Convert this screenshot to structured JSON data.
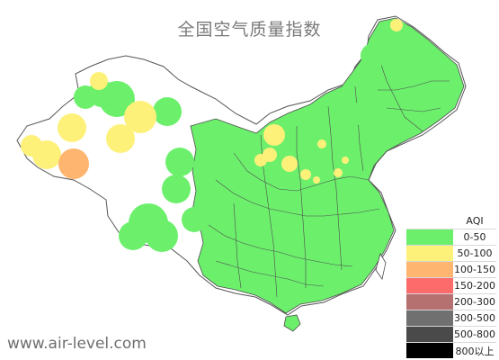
{
  "title": "全国空气质量指数",
  "watermark": "www.air-level.com",
  "legend": {
    "title": "AQI",
    "items": [
      {
        "label": "0-50",
        "color": "#6cf06c"
      },
      {
        "label": "50-100",
        "color": "#fef17a"
      },
      {
        "label": "100-150",
        "color": "#fdb56f"
      },
      {
        "label": "150-200",
        "color": "#fd6b6b"
      },
      {
        "label": "200-300",
        "color": "#b57070"
      },
      {
        "label": "300-500",
        "color": "#707070"
      },
      {
        "label": "500-800",
        "color": "#4a4a4a"
      },
      {
        "label": "800以上",
        "color": "#000000"
      }
    ]
  },
  "colors": {
    "good": "#6cf06c",
    "moderate": "#fef17a",
    "sensitive": "#fdb56f",
    "border": "#4d4d4d",
    "background": "#ffffff"
  }
}
